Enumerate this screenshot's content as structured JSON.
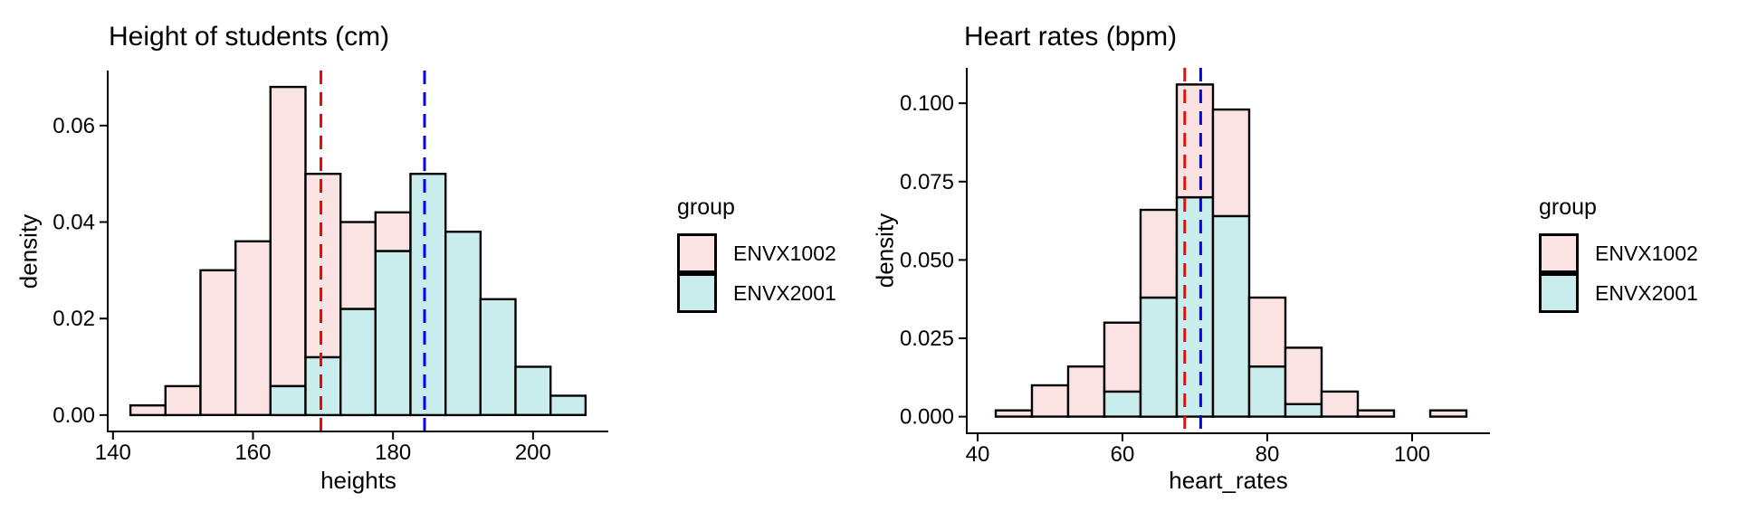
{
  "colors": {
    "envx1002_fill": "#fce3e3",
    "envx2001_fill": "#c9eded",
    "bar_stroke": "#000000",
    "axis": "#000000",
    "text": "#000000",
    "red_line": "#ff0000",
    "blue_line": "#0000ff",
    "background": "#ffffff"
  },
  "legend": {
    "title": "group",
    "items": [
      {
        "label": "ENVX1002",
        "color_key": "envx1002_fill"
      },
      {
        "label": "ENVX2001",
        "color_key": "envx2001_fill"
      }
    ]
  },
  "chart_data": [
    {
      "type": "bar",
      "subtype": "stacked-histogram",
      "title": "Height of students (cm)",
      "xlabel": "heights",
      "ylabel": "density",
      "bin_start": 142.5,
      "bin_width": 5,
      "bin_count": 13,
      "bin_edges": [
        142.5,
        147.5,
        152.5,
        157.5,
        162.5,
        167.5,
        172.5,
        177.5,
        182.5,
        187.5,
        192.5,
        197.5,
        202.5,
        207.5
      ],
      "series": [
        {
          "name": "ENVX2001",
          "color_key": "envx2001_fill",
          "stack": "bottom",
          "values": [
            0,
            0,
            0,
            0,
            0.006,
            0.012,
            0.022,
            0.034,
            0.05,
            0.038,
            0.024,
            0.01,
            0.004
          ]
        },
        {
          "name": "ENVX1002",
          "color_key": "envx1002_fill",
          "stack": "top",
          "values": [
            0.002,
            0.006,
            0.03,
            0.036,
            0.062,
            0.038,
            0.018,
            0.008,
            0,
            0,
            0,
            0,
            0
          ]
        }
      ],
      "stack_totals": [
        0.002,
        0.006,
        0.03,
        0.036,
        0.068,
        0.05,
        0.04,
        0.042,
        0.05,
        0.038,
        0.024,
        0.01,
        0.004
      ],
      "x_ticks": [
        {
          "v": 140,
          "label": "140"
        },
        {
          "v": 160,
          "label": "160"
        },
        {
          "v": 180,
          "label": "180"
        },
        {
          "v": 200,
          "label": "200"
        }
      ],
      "y_ticks": [
        {
          "v": 0,
          "label": "0.00"
        },
        {
          "v": 0.02,
          "label": "0.02"
        },
        {
          "v": 0.04,
          "label": "0.04"
        },
        {
          "v": 0.06,
          "label": "0.06"
        }
      ],
      "xlim": [
        139.25,
        210.75
      ],
      "ylim": [
        -0.0034,
        0.0714
      ],
      "grid": false,
      "vlines": [
        {
          "x": 169.7,
          "color_key": "red_line",
          "style": "dashed"
        },
        {
          "x": 184.5,
          "color_key": "blue_line",
          "style": "dashed"
        }
      ]
    },
    {
      "type": "bar",
      "subtype": "stacked-histogram",
      "title": "Heart rates (bpm)",
      "xlabel": "heart_rates",
      "ylabel": "density",
      "bin_start": 42.5,
      "bin_width": 5,
      "bin_count": 13,
      "bin_edges": [
        42.5,
        47.5,
        52.5,
        57.5,
        62.5,
        67.5,
        72.5,
        77.5,
        82.5,
        87.5,
        92.5,
        97.5,
        102.5,
        107.5
      ],
      "series": [
        {
          "name": "ENVX2001",
          "color_key": "envx2001_fill",
          "stack": "bottom",
          "values": [
            0,
            0,
            0,
            0.008,
            0.038,
            0.07,
            0.064,
            0.016,
            0.004,
            0,
            0,
            0,
            0
          ]
        },
        {
          "name": "ENVX1002",
          "color_key": "envx1002_fill",
          "stack": "top",
          "values": [
            0.002,
            0.01,
            0.016,
            0.022,
            0.028,
            0.036,
            0.034,
            0.022,
            0.018,
            0.008,
            0.002,
            0,
            0.002
          ]
        }
      ],
      "stack_totals": [
        0.002,
        0.01,
        0.016,
        0.03,
        0.066,
        0.106,
        0.098,
        0.038,
        0.022,
        0.008,
        0.002,
        0,
        0.002
      ],
      "x_ticks": [
        {
          "v": 40,
          "label": "40"
        },
        {
          "v": 60,
          "label": "60"
        },
        {
          "v": 80,
          "label": "80"
        },
        {
          "v": 100,
          "label": "100"
        }
      ],
      "y_ticks": [
        {
          "v": 0,
          "label": "0.000"
        },
        {
          "v": 0.025,
          "label": "0.025"
        },
        {
          "v": 0.05,
          "label": "0.050"
        },
        {
          "v": 0.075,
          "label": "0.075"
        },
        {
          "v": 0.1,
          "label": "0.100"
        }
      ],
      "xlim": [
        38.5,
        110.75
      ],
      "ylim": [
        -0.0053,
        0.1113
      ],
      "grid": false,
      "vlines": [
        {
          "x": 68.6,
          "color_key": "red_line",
          "style": "dashed"
        },
        {
          "x": 70.8,
          "color_key": "blue_line",
          "style": "dashed"
        }
      ]
    }
  ]
}
